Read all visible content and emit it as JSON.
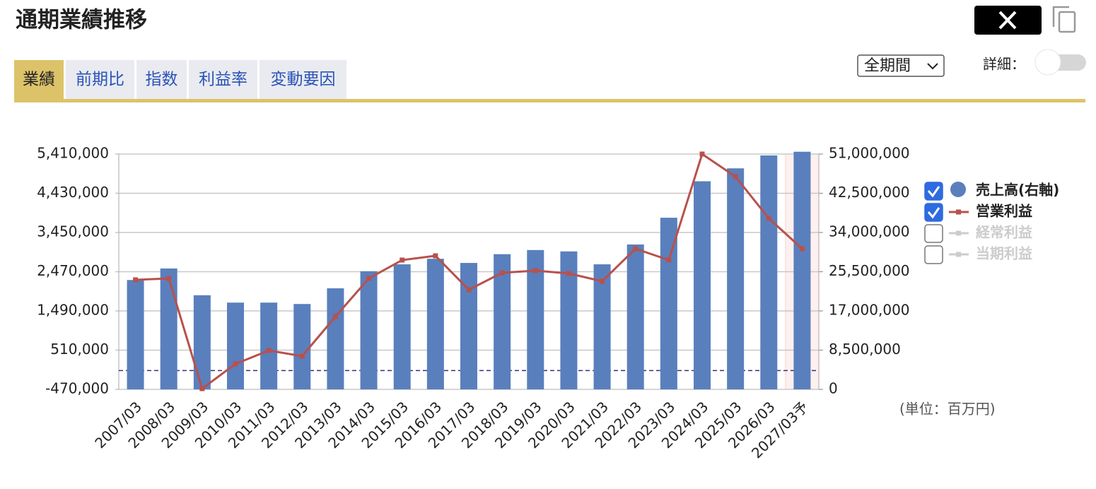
{
  "header": {
    "title": "通期業績推移",
    "tabs": [
      "業績",
      "前期比",
      "指数",
      "利益率",
      "変動要因"
    ],
    "period_select": "全期間",
    "detail_label": "詳細："
  },
  "chart_data": {
    "type": "bar_line",
    "categories": [
      "2007/03",
      "2008/03",
      "2009/03",
      "2010/03",
      "2011/03",
      "2012/03",
      "2013/03",
      "2014/03",
      "2015/03",
      "2016/03",
      "2017/03",
      "2018/03",
      "2019/03",
      "2020/03",
      "2021/03",
      "2022/03",
      "2023/03",
      "2024/03",
      "2025/03",
      "2026/03",
      "2027/03予"
    ],
    "series": [
      {
        "name": "売上高(右軸)",
        "type": "bar",
        "axis": "y2",
        "color": "#5a7fbd",
        "visible": true,
        "values": [
          23700000,
          26200000,
          20400000,
          18800000,
          18800000,
          18500000,
          21900000,
          25600000,
          27100000,
          28300000,
          27400000,
          29300000,
          30200000,
          29900000,
          27100000,
          31400000,
          37200000,
          45100000,
          47900000,
          50700000,
          51500000
        ]
      },
      {
        "name": "営業利益",
        "type": "line",
        "axis": "y",
        "color": "#b8514c",
        "visible": true,
        "values": [
          2267000,
          2302000,
          -452000,
          166000,
          501000,
          360000,
          1349000,
          2302000,
          2761000,
          2867000,
          2020000,
          2443000,
          2496000,
          2426000,
          2232000,
          3044000,
          2761000,
          5410000,
          4845000,
          3803000,
          3044000
        ]
      },
      {
        "name": "経常利益",
        "type": "line",
        "axis": "y",
        "color": "#cccccc",
        "visible": false,
        "values": [
          null,
          null,
          null,
          null,
          null,
          null,
          null,
          null,
          null,
          null,
          null,
          null,
          null,
          null,
          null,
          null,
          null,
          null,
          null,
          null,
          null
        ]
      },
      {
        "name": "当期利益",
        "type": "line",
        "axis": "y",
        "color": "#cccccc",
        "visible": false,
        "values": [
          null,
          null,
          null,
          null,
          null,
          null,
          null,
          null,
          null,
          null,
          null,
          null,
          null,
          null,
          null,
          null,
          null,
          null,
          null,
          null,
          null
        ]
      }
    ],
    "ylim": [
      -470000,
      5410000
    ],
    "yticks": [
      {
        "value": -470000,
        "label": "-470,000"
      },
      {
        "value": 510000,
        "label": "510,000"
      },
      {
        "value": 1490000,
        "label": "1,490,000"
      },
      {
        "value": 2470000,
        "label": "2,470,000"
      },
      {
        "value": 3450000,
        "label": "3,450,000"
      },
      {
        "value": 4430000,
        "label": "4,430,000"
      },
      {
        "value": 5410000,
        "label": "5,410,000"
      }
    ],
    "y2lim": [
      0,
      51000000
    ],
    "y2ticks": [
      0,
      {
        "value": 8500000,
        "label": "8,500,000"
      },
      {
        "value": 17000000,
        "label": "17,000,000"
      },
      {
        "value": 25500000,
        "label": "25,500,000"
      },
      {
        "value": 34000000,
        "label": "34,000,000"
      },
      {
        "value": 42500000,
        "label": "42,500,000"
      },
      {
        "value": 51000000,
        "label": "51,000,000"
      }
    ],
    "grid": true,
    "legend": "right",
    "annotation": "(単位：百万円)"
  }
}
